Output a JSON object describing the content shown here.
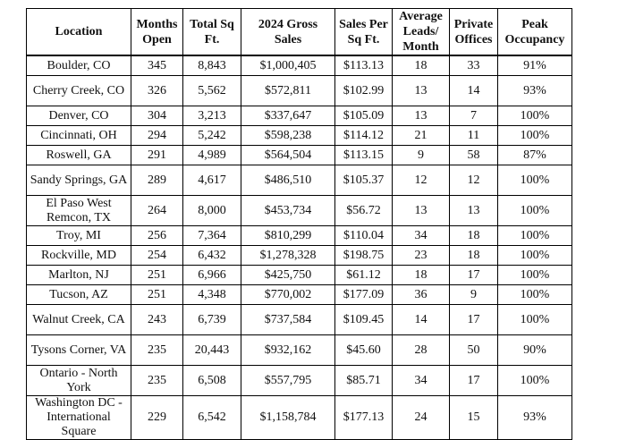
{
  "table": {
    "headers": [
      "Location",
      "Months Open",
      "Total Sq Ft.",
      "2024 Gross Sales",
      "Sales Per Sq Ft.",
      "Average Leads/ Month",
      "Private Offices",
      "Peak Occupancy"
    ],
    "rows": [
      [
        "Boulder, CO",
        "345",
        "8,843",
        "$1,000,405",
        "$113.13",
        "18",
        "33",
        "91%"
      ],
      [
        "Cherry Creek, CO",
        "326",
        "5,562",
        "$572,811",
        "$102.99",
        "13",
        "14",
        "93%"
      ],
      [
        "Denver, CO",
        "304",
        "3,213",
        "$337,647",
        "$105.09",
        "13",
        "7",
        "100%"
      ],
      [
        "Cincinnati, OH",
        "294",
        "5,242",
        "$598,238",
        "$114.12",
        "21",
        "11",
        "100%"
      ],
      [
        "Roswell, GA",
        "291",
        "4,989",
        "$564,504",
        "$113.15",
        "9",
        "58",
        "87%"
      ],
      [
        "Sandy Springs, GA",
        "289",
        "4,617",
        "$486,510",
        "$105.37",
        "12",
        "12",
        "100%"
      ],
      [
        "El Paso West Remcon, TX",
        "264",
        "8,000",
        "$453,734",
        "$56.72",
        "13",
        "13",
        "100%"
      ],
      [
        "Troy, MI",
        "256",
        "7,364",
        "$810,299",
        "$110.04",
        "34",
        "18",
        "100%"
      ],
      [
        "Rockville, MD",
        "254",
        "6,432",
        "$1,278,328",
        "$198.75",
        "23",
        "18",
        "100%"
      ],
      [
        "Marlton, NJ",
        "251",
        "6,966",
        "$425,750",
        "$61.12",
        "18",
        "17",
        "100%"
      ],
      [
        "Tucson, AZ",
        "251",
        "4,348",
        "$770,002",
        "$177.09",
        "36",
        "9",
        "100%"
      ],
      [
        "Walnut Creek, CA",
        "243",
        "6,739",
        "$737,584",
        "$109.45",
        "14",
        "17",
        "100%"
      ],
      [
        "Tysons Corner, VA",
        "235",
        "20,443",
        "$932,162",
        "$45.60",
        "28",
        "50",
        "90%"
      ],
      [
        "Ontario - North York",
        "235",
        "6,508",
        "$557,795",
        "$85.71",
        "34",
        "17",
        "100%"
      ],
      [
        "Washington DC - International Square",
        "229",
        "6,542",
        "$1,158,784",
        "$177.13",
        "24",
        "15",
        "93%"
      ]
    ]
  }
}
